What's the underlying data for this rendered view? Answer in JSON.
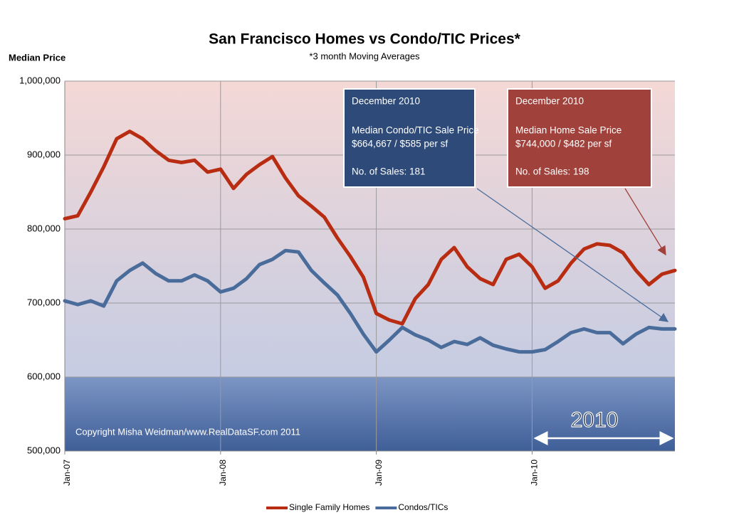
{
  "chart_data": {
    "type": "line",
    "title": "San Francisco Homes  vs  Condo/TIC Prices*",
    "subtitle": "*3 month Moving Averages",
    "y_label": "Median Price",
    "categories": [
      "Jan-07",
      null,
      null,
      null,
      null,
      null,
      null,
      null,
      null,
      null,
      null,
      null,
      "Jan-08",
      null,
      null,
      null,
      null,
      null,
      null,
      null,
      null,
      null,
      null,
      null,
      "Jan-09",
      null,
      null,
      null,
      null,
      null,
      null,
      null,
      null,
      null,
      null,
      null,
      "Jan-10",
      null,
      null,
      null,
      null,
      null,
      null,
      null,
      null,
      null,
      null,
      null
    ],
    "series": [
      {
        "name": "Single Family Homes",
        "color": "#b82d12",
        "values": [
          814000,
          818000,
          850000,
          884000,
          922000,
          932000,
          922000,
          906000,
          893000,
          890000,
          893000,
          877000,
          881000,
          855000,
          874000,
          887000,
          898000,
          869000,
          845000,
          831000,
          816000,
          788000,
          763000,
          735000,
          686000,
          677000,
          672000,
          706000,
          725000,
          759000,
          775000,
          749000,
          733000,
          725000,
          759000,
          766000,
          749000,
          720000,
          730000,
          754000,
          773000,
          780000,
          778000,
          768000,
          744000,
          725000,
          739000,
          744000
        ]
      },
      {
        "name": "Condos/TICs",
        "color": "#4a6c9b",
        "values": [
          703000,
          698000,
          703000,
          696000,
          730000,
          744000,
          754000,
          740000,
          730000,
          730000,
          738000,
          730000,
          715000,
          720000,
          733000,
          752000,
          759000,
          771000,
          769000,
          744000,
          727000,
          711000,
          686000,
          658000,
          634000,
          650000,
          667000,
          657000,
          650000,
          640000,
          648000,
          644000,
          653000,
          643000,
          638000,
          634000,
          634000,
          637000,
          648000,
          660000,
          665000,
          660000,
          660000,
          645000,
          658000,
          667000,
          665000,
          665000
        ]
      }
    ],
    "ylim": [
      500000,
      1000000
    ],
    "yticks": [
      {
        "value": 500000,
        "label": "500,000"
      },
      {
        "value": 600000,
        "label": "600,000"
      },
      {
        "value": 700000,
        "label": "700,000"
      },
      {
        "value": 800000,
        "label": "800,000"
      },
      {
        "value": 900000,
        "label": "900,000"
      },
      {
        "value": 1000000,
        "label": "1,000,000"
      }
    ],
    "grid": true,
    "legend": "bottom",
    "annotations": [
      {
        "lines": [
          "December  2010",
          "Median Condo/TIC Sale Price",
          "$664,667 /  $585 per sf",
          "No. of  Sales:  181"
        ],
        "color": "#2e4a78"
      },
      {
        "lines": [
          "December  2010",
          "Median  Home Sale Price",
          "$744,000 /  $482 per sf",
          "No. of  Sales:  198"
        ],
        "color": "#a0413b"
      }
    ],
    "period_label": "2010",
    "copyright": "Copyright Misha Weidman/www.RealDataSF.com 2011"
  }
}
